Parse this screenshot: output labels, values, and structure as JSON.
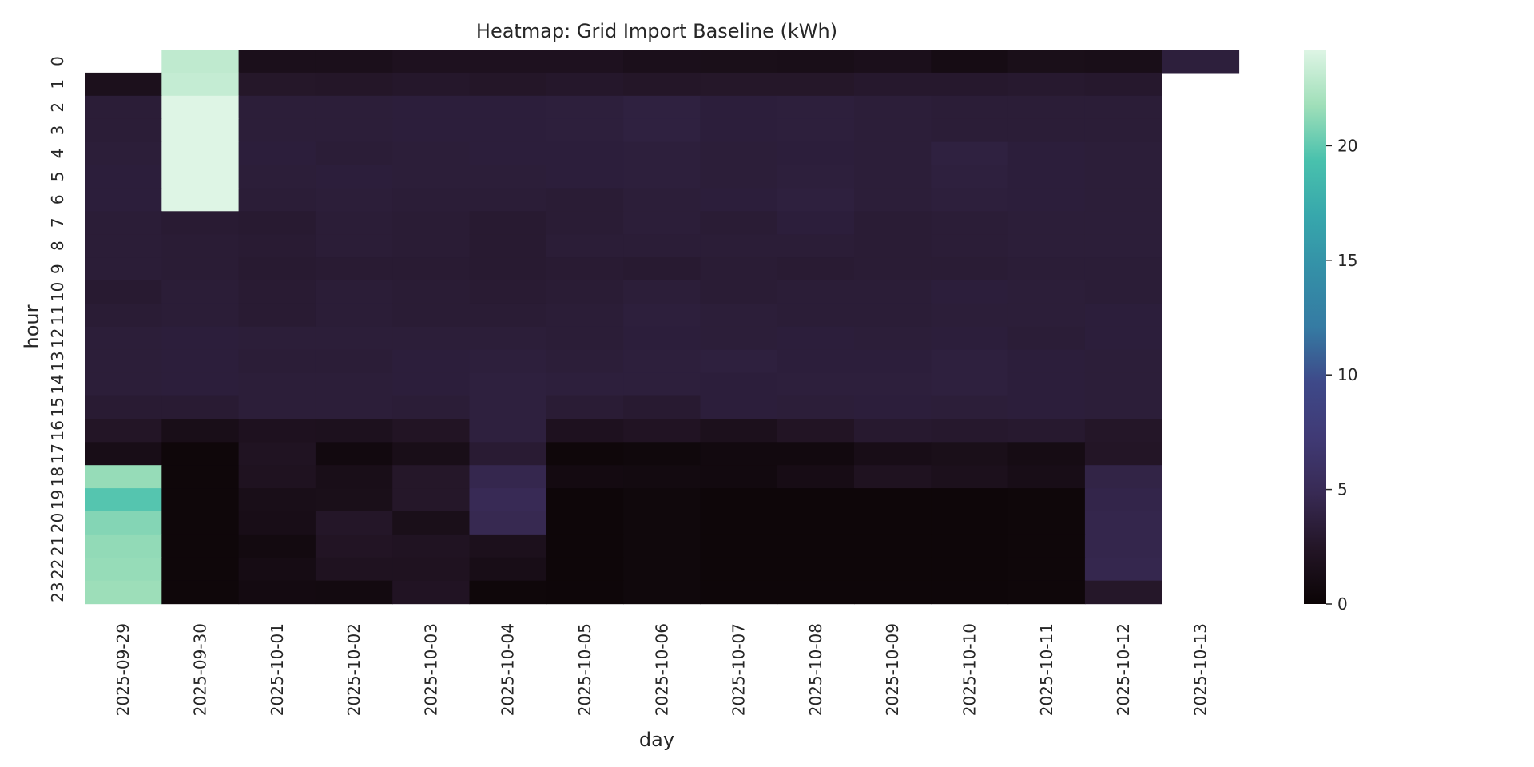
{
  "chart_data": {
    "type": "heatmap",
    "title": "Heatmap: Grid Import Baseline (kWh)",
    "xlabel": "day",
    "ylabel": "hour",
    "x_categories": [
      "2025-09-29",
      "2025-09-30",
      "2025-10-01",
      "2025-10-02",
      "2025-10-03",
      "2025-10-04",
      "2025-10-05",
      "2025-10-06",
      "2025-10-07",
      "2025-10-08",
      "2025-10-09",
      "2025-10-10",
      "2025-10-11",
      "2025-10-12",
      "2025-10-13"
    ],
    "y_categories": [
      "0",
      "1",
      "2",
      "3",
      "4",
      "5",
      "6",
      "7",
      "8",
      "9",
      "10",
      "11",
      "12",
      "13",
      "14",
      "15",
      "16",
      "17",
      "18",
      "19",
      "20",
      "21",
      "22",
      "23"
    ],
    "y_tick_labels": [
      "0",
      "1",
      "2",
      "3",
      "4",
      "5",
      "6",
      "7",
      "8",
      "9",
      "10",
      "11",
      "12",
      "13",
      "14",
      "15",
      "16",
      "17",
      "18",
      "19",
      "20",
      "21",
      "22",
      "23"
    ],
    "colormap": "mako",
    "vmin": 0,
    "vmax": 24.2,
    "colorbar_ticks": [
      0,
      5,
      10,
      15,
      20
    ],
    "values": [
      [
        null,
        23.0,
        1.6,
        1.6,
        1.9,
        1.9,
        1.9,
        1.6,
        1.5,
        1.4,
        1.6,
        1.1,
        1.5,
        1.4,
        3.6
      ],
      [
        1.7,
        23.2,
        2.6,
        2.5,
        2.7,
        2.5,
        2.7,
        2.5,
        2.6,
        2.6,
        2.8,
        2.8,
        2.9,
        2.8,
        null
      ],
      [
        3.3,
        24.2,
        3.4,
        3.4,
        3.5,
        3.5,
        3.6,
        3.8,
        3.5,
        3.6,
        3.4,
        3.3,
        3.3,
        3.3,
        null
      ],
      [
        3.3,
        24.2,
        3.4,
        3.4,
        3.5,
        3.5,
        3.6,
        3.8,
        3.5,
        3.6,
        3.4,
        3.3,
        3.3,
        3.3,
        null
      ],
      [
        3.4,
        24.2,
        3.5,
        3.3,
        3.4,
        3.5,
        3.5,
        3.6,
        3.4,
        3.5,
        3.4,
        3.8,
        3.5,
        3.4,
        null
      ],
      [
        3.5,
        24.2,
        3.4,
        3.5,
        3.4,
        3.4,
        3.5,
        3.6,
        3.4,
        3.6,
        3.4,
        3.7,
        3.5,
        3.4,
        null
      ],
      [
        3.5,
        24.2,
        3.3,
        3.4,
        3.3,
        3.3,
        3.2,
        3.4,
        3.5,
        3.7,
        3.4,
        3.6,
        3.5,
        3.4,
        null
      ],
      [
        3.3,
        3.1,
        3.0,
        3.3,
        3.2,
        3.0,
        3.2,
        3.4,
        3.2,
        3.5,
        3.2,
        3.3,
        3.4,
        3.4,
        null
      ],
      [
        3.3,
        3.2,
        3.1,
        3.3,
        3.2,
        3.0,
        3.3,
        3.3,
        3.3,
        3.3,
        3.2,
        3.3,
        3.4,
        3.4,
        null
      ],
      [
        3.3,
        3.2,
        3.0,
        3.1,
        3.1,
        3.0,
        3.1,
        3.0,
        3.2,
        3.1,
        3.2,
        3.2,
        3.3,
        3.3,
        null
      ],
      [
        3.0,
        3.3,
        3.1,
        3.3,
        3.2,
        3.1,
        3.2,
        3.4,
        3.2,
        3.3,
        3.3,
        3.5,
        3.4,
        3.3,
        null
      ],
      [
        3.2,
        3.3,
        3.1,
        3.3,
        3.2,
        3.2,
        3.3,
        3.6,
        3.4,
        3.3,
        3.3,
        3.4,
        3.4,
        3.5,
        null
      ],
      [
        3.4,
        3.5,
        3.4,
        3.4,
        3.4,
        3.4,
        3.3,
        3.5,
        3.4,
        3.5,
        3.4,
        3.5,
        3.3,
        3.5,
        null
      ],
      [
        3.4,
        3.5,
        3.3,
        3.3,
        3.5,
        3.6,
        3.4,
        3.6,
        3.7,
        3.5,
        3.5,
        3.7,
        3.5,
        3.4,
        null
      ],
      [
        3.4,
        3.5,
        3.4,
        3.4,
        3.5,
        3.7,
        3.6,
        3.6,
        3.5,
        3.6,
        3.6,
        3.7,
        3.5,
        3.4,
        null
      ],
      [
        3.1,
        3.1,
        3.4,
        3.4,
        3.3,
        3.7,
        3.2,
        3.0,
        3.5,
        3.4,
        3.5,
        3.4,
        3.5,
        3.4,
        null
      ],
      [
        2.4,
        1.4,
        1.9,
        1.8,
        2.3,
        3.7,
        1.9,
        2.2,
        1.7,
        2.3,
        2.9,
        2.8,
        2.9,
        2.5,
        null
      ],
      [
        1.3,
        0.4,
        2.1,
        0.7,
        1.4,
        3.1,
        0.4,
        0.5,
        0.7,
        0.7,
        1.3,
        1.5,
        1.1,
        2.4,
        null
      ],
      [
        21.5,
        0.4,
        2.0,
        1.4,
        2.6,
        4.5,
        0.9,
        0.8,
        0.7,
        1.2,
        2.0,
        1.7,
        1.3,
        4.1,
        null
      ],
      [
        19.7,
        0.4,
        1.4,
        1.5,
        2.6,
        4.9,
        0.3,
        0.5,
        0.3,
        0.3,
        0.3,
        0.3,
        0.4,
        4.3,
        null
      ],
      [
        21.0,
        0.4,
        1.3,
        2.5,
        1.5,
        4.7,
        0.3,
        0.5,
        0.3,
        0.3,
        0.3,
        0.3,
        0.4,
        4.4,
        null
      ],
      [
        21.4,
        0.4,
        0.8,
        2.3,
        2.1,
        1.7,
        0.3,
        0.5,
        0.3,
        0.3,
        0.3,
        0.3,
        0.4,
        4.4,
        null
      ],
      [
        21.5,
        0.4,
        1.1,
        2.0,
        2.0,
        1.3,
        0.3,
        0.5,
        0.3,
        0.3,
        0.3,
        0.3,
        0.4,
        4.5,
        null
      ],
      [
        21.7,
        0.4,
        0.9,
        0.8,
        2.2,
        0.4,
        0.3,
        0.5,
        0.3,
        0.3,
        0.3,
        0.3,
        0.4,
        2.6,
        null
      ]
    ]
  }
}
